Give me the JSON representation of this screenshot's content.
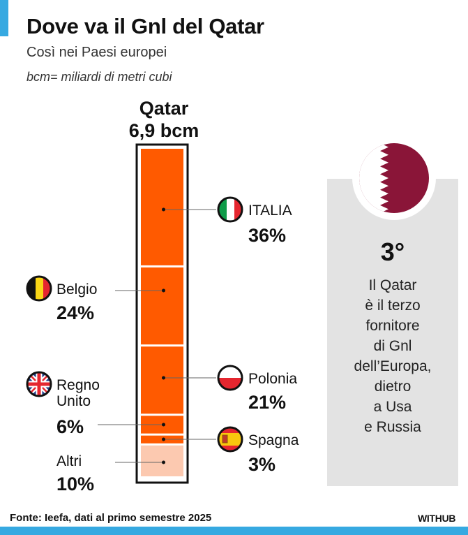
{
  "header": {
    "title": "Dove va il Gnl del Qatar",
    "subtitle": "Così nei Paesi europei",
    "unit_note": "bcm= miliardi di metri cubi"
  },
  "chart_data": {
    "type": "bar",
    "stacked": true,
    "column_label": "Qatar",
    "total_label": "6,9 bcm",
    "unit": "%",
    "ylim": [
      0,
      100
    ],
    "series": [
      {
        "name": "ITALIA",
        "value": 36,
        "label": "36%",
        "color": "#ff5a00",
        "flag": "italy-flag-icon",
        "side": "right"
      },
      {
        "name": "Belgio",
        "value": 24,
        "label": "24%",
        "color": "#ff5a00",
        "flag": "belgium-flag-icon",
        "side": "left"
      },
      {
        "name": "Polonia",
        "value": 21,
        "label": "21%",
        "color": "#ff5a00",
        "flag": "poland-flag-icon",
        "side": "right"
      },
      {
        "name": "Regno Unito",
        "value": 6,
        "label": "6%",
        "color": "#ff5a00",
        "flag": "uk-flag-icon",
        "side": "left"
      },
      {
        "name": "Spagna",
        "value": 3,
        "label": "3%",
        "color": "#ff5a00",
        "flag": "spain-flag-icon",
        "side": "right"
      },
      {
        "name": "Altri",
        "value": 10,
        "label": "10%",
        "color": "#fcc9b0",
        "flag": "",
        "side": "left"
      }
    ]
  },
  "panel": {
    "flag": "qatar-flag-icon",
    "rank": "3°",
    "text_lines": [
      "Il Qatar",
      "è il terzo",
      "fornitore",
      "di Gnl",
      "dell’Europa,",
      "dietro",
      "a Usa",
      "e Russia"
    ]
  },
  "footer": {
    "source": "Fonte: Ieefa, dati al primo semestre 2025",
    "brand": "WITHUB"
  },
  "colors": {
    "accent": "#36a9e1",
    "bar": "#ff5a00",
    "other": "#fcc9b0",
    "qatar_maroon": "#8a1538",
    "panel_bg": "#e3e3e3"
  }
}
